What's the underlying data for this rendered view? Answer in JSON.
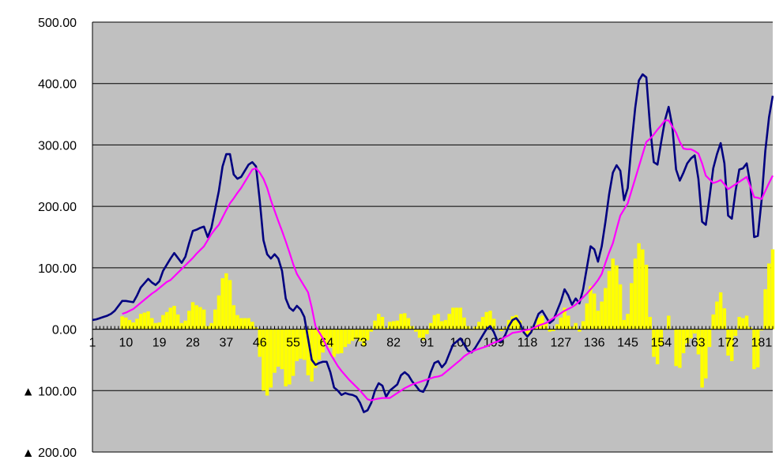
{
  "chart_data": {
    "type": "combo",
    "categories": [
      "1",
      null,
      null,
      null,
      null,
      null,
      null,
      null,
      null,
      "10",
      null,
      null,
      null,
      null,
      null,
      null,
      null,
      null,
      "19",
      null,
      null,
      null,
      null,
      null,
      null,
      null,
      null,
      "28",
      null,
      null,
      null,
      null,
      null,
      null,
      null,
      null,
      "37",
      null,
      null,
      null,
      null,
      null,
      null,
      null,
      null,
      "46",
      null,
      null,
      null,
      null,
      null,
      null,
      null,
      null,
      "55",
      null,
      null,
      null,
      null,
      null,
      null,
      null,
      null,
      "64",
      null,
      null,
      null,
      null,
      null,
      null,
      null,
      null,
      "73",
      null,
      null,
      null,
      null,
      null,
      null,
      null,
      null,
      "82",
      null,
      null,
      null,
      null,
      null,
      null,
      null,
      null,
      "91",
      null,
      null,
      null,
      null,
      null,
      null,
      null,
      null,
      "100",
      null,
      null,
      null,
      null,
      null,
      null,
      null,
      null,
      "109",
      null,
      null,
      null,
      null,
      null,
      null,
      null,
      null,
      "118",
      null,
      null,
      null,
      null,
      null,
      null,
      null,
      null,
      "127",
      null,
      null,
      null,
      null,
      null,
      null,
      null,
      null,
      "136",
      null,
      null,
      null,
      null,
      null,
      null,
      null,
      null,
      "145",
      null,
      null,
      null,
      null,
      null,
      null,
      null,
      null,
      "154",
      null,
      null,
      null,
      null,
      null,
      null,
      null,
      null,
      "163",
      null,
      null,
      null,
      null,
      null,
      null,
      null,
      null,
      "172",
      null,
      null,
      null,
      null,
      null,
      null,
      null,
      null,
      "181",
      null,
      null,
      null
    ],
    "series": [
      {
        "type": "bar",
        "color": "#ffff00",
        "values": [
          null,
          null,
          null,
          null,
          null,
          null,
          null,
          null,
          21,
          19,
          15,
          11,
          17,
          25,
          27,
          29,
          18,
          10,
          11,
          23,
          28,
          35,
          38,
          24,
          10,
          14,
          30,
          44,
          39,
          36,
          32,
          5,
          10,
          32,
          55,
          83,
          91,
          80,
          39,
          23,
          18,
          18,
          18,
          12,
          3,
          -45,
          -100,
          -108,
          -95,
          -71,
          -61,
          -65,
          -93,
          -90,
          -76,
          -52,
          -48,
          -50,
          -75,
          -85,
          -63,
          -50,
          -38,
          -25,
          -30,
          -45,
          -40,
          -39,
          -29,
          -24,
          -19,
          -16,
          -20,
          -28,
          -18,
          -4,
          14,
          25,
          20,
          2,
          12,
          13,
          14,
          25,
          26,
          18,
          5,
          -4,
          -14,
          -18,
          -8,
          10,
          23,
          25,
          13,
          15,
          25,
          35,
          35,
          35,
          19,
          5,
          -1,
          4,
          12,
          20,
          28,
          30,
          17,
          0,
          -3,
          3,
          15,
          21,
          23,
          14,
          -3,
          -11,
          -5,
          7,
          19,
          22,
          10,
          -4,
          -3,
          8,
          19,
          35,
          22,
          4,
          10,
          -4,
          13,
          42,
          70,
          58,
          30,
          45,
          67,
          95,
          115,
          104,
          73,
          15,
          25,
          75,
          115,
          140,
          130,
          105,
          20,
          -45,
          -57,
          -27,
          0,
          22,
          0,
          -60,
          -63,
          -39,
          -23,
          -15,
          -7,
          -41,
          -95,
          -80,
          -29,
          24,
          45,
          60,
          34,
          -43,
          -52,
          -11,
          20,
          18,
          22,
          3,
          -65,
          -62,
          -2,
          65,
          107,
          130
        ]
      },
      {
        "type": "line",
        "color": "#000080",
        "values": [
          15,
          16,
          18,
          20,
          22,
          25,
          30,
          38,
          46,
          46,
          45,
          44,
          55,
          68,
          75,
          82,
          76,
          72,
          78,
          95,
          105,
          115,
          124,
          116,
          108,
          118,
          140,
          160,
          162,
          165,
          167,
          150,
          165,
          195,
          225,
          265,
          285,
          285,
          252,
          245,
          248,
          258,
          268,
          272,
          265,
          210,
          145,
          122,
          115,
          122,
          115,
          95,
          50,
          35,
          30,
          38,
          32,
          20,
          -15,
          -50,
          -58,
          -55,
          -53,
          -53,
          -70,
          -95,
          -100,
          -107,
          -104,
          -106,
          -107,
          -110,
          -120,
          -135,
          -132,
          -120,
          -100,
          -88,
          -92,
          -110,
          -100,
          -95,
          -90,
          -75,
          -70,
          -75,
          -85,
          -92,
          -100,
          -102,
          -90,
          -70,
          -55,
          -52,
          -62,
          -55,
          -40,
          -25,
          -20,
          -15,
          -25,
          -35,
          -38,
          -30,
          -20,
          -10,
          0,
          5,
          -5,
          -20,
          -20,
          -10,
          5,
          15,
          18,
          10,
          -5,
          -12,
          -5,
          10,
          25,
          30,
          20,
          10,
          15,
          30,
          45,
          65,
          55,
          40,
          50,
          42,
          65,
          100,
          135,
          130,
          110,
          135,
          175,
          220,
          255,
          267,
          258,
          210,
          230,
          300,
          360,
          405,
          415,
          410,
          330,
          272,
          268,
          305,
          340,
          362,
          330,
          260,
          242,
          255,
          270,
          278,
          283,
          245,
          175,
          170,
          215,
          262,
          285,
          303,
          270,
          185,
          180,
          225,
          260,
          262,
          270,
          235,
          150,
          152,
          210,
          290,
          345,
          380
        ]
      },
      {
        "type": "line",
        "color": "#ff00ff",
        "values": [
          null,
          null,
          null,
          null,
          null,
          null,
          null,
          null,
          25,
          27,
          30,
          33,
          38,
          43,
          48,
          53,
          58,
          62,
          67,
          72,
          77,
          80,
          86,
          92,
          98,
          104,
          110,
          116,
          123,
          129,
          135,
          145,
          155,
          163,
          170,
          182,
          194,
          205,
          213,
          222,
          230,
          240,
          250,
          260,
          262,
          255,
          245,
          230,
          210,
          193,
          176,
          160,
          143,
          125,
          106,
          90,
          80,
          70,
          60,
          35,
          5,
          -5,
          -15,
          -28,
          -40,
          -50,
          -60,
          -68,
          -75,
          -82,
          -88,
          -94,
          -100,
          -107,
          -114,
          -116,
          -114,
          -113,
          -112,
          -112,
          -112,
          -108,
          -104,
          -100,
          -96,
          -93,
          -90,
          -88,
          -86,
          -84,
          -82,
          -80,
          -78,
          -77,
          -75,
          -70,
          -65,
          -60,
          -55,
          -50,
          -44,
          -40,
          -37,
          -34,
          -32,
          -30,
          -28,
          -25,
          -22,
          -20,
          -17,
          -13,
          -10,
          -6,
          -5,
          -4,
          -2,
          -1,
          0,
          3,
          6,
          8,
          10,
          14,
          18,
          22,
          26,
          30,
          33,
          36,
          40,
          46,
          52,
          58,
          65,
          72,
          80,
          90,
          108,
          125,
          140,
          163,
          185,
          195,
          205,
          225,
          245,
          265,
          285,
          305,
          310,
          317,
          325,
          332,
          340,
          340,
          330,
          320,
          305,
          294,
          293,
          293,
          290,
          286,
          270,
          250,
          244,
          238,
          240,
          243,
          236,
          228,
          232,
          236,
          240,
          244,
          248,
          232,
          215,
          214,
          212,
          225,
          238,
          250
        ]
      }
    ],
    "ylim": [
      -200,
      500
    ],
    "yticks": [
      {
        "value": -200,
        "label": "▲ 200.00"
      },
      {
        "value": -100,
        "label": "▲ 100.00"
      },
      {
        "value": 0,
        "label": "0.00"
      },
      {
        "value": 100,
        "label": "100.00"
      },
      {
        "value": 200,
        "label": "200.00"
      },
      {
        "value": 300,
        "label": "300.00"
      },
      {
        "value": 400,
        "label": "400.00"
      },
      {
        "value": 500,
        "label": "500.00"
      }
    ],
    "grid": true,
    "plot_background": "#c0c0c0"
  }
}
